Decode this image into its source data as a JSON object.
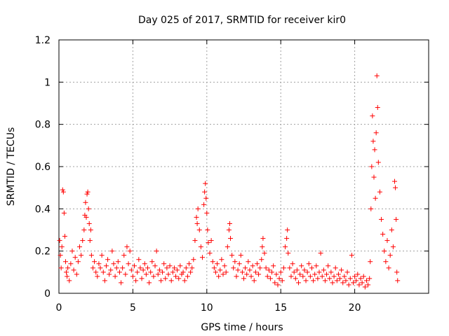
{
  "chart_data": {
    "type": "scatter",
    "title": "Day 025 of 2017, SRMTID for receiver kir0",
    "xlabel": "GPS time / hours",
    "ylabel": "SRMTID / TECUs",
    "xlim": [
      0,
      25
    ],
    "ylim": [
      0,
      1.2
    ],
    "xticks": [
      0,
      5,
      10,
      15,
      20
    ],
    "xtick_labels": [
      "0",
      "5",
      "10",
      "15",
      "20"
    ],
    "yticks": [
      0,
      0.2,
      0.4,
      0.6,
      0.8,
      1.0,
      1.2
    ],
    "ytick_labels": [
      "0",
      "0.2",
      "0.4",
      "0.6",
      "0.8",
      "1",
      "1.2"
    ],
    "grid": true,
    "marker": "+",
    "series": [
      {
        "name": "SRMTID",
        "color": "#ff0000",
        "points": [
          [
            0.05,
            0.25
          ],
          [
            0.1,
            0.18
          ],
          [
            0.15,
            0.12
          ],
          [
            0.2,
            0.22
          ],
          [
            0.25,
            0.49
          ],
          [
            0.3,
            0.48
          ],
          [
            0.35,
            0.38
          ],
          [
            0.4,
            0.27
          ],
          [
            0.45,
            0.15
          ],
          [
            0.5,
            0.1
          ],
          [
            0.55,
            0.08
          ],
          [
            0.6,
            0.12
          ],
          [
            0.7,
            0.06
          ],
          [
            0.8,
            0.14
          ],
          [
            0.9,
            0.2
          ],
          [
            1.0,
            0.11
          ],
          [
            1.1,
            0.17
          ],
          [
            1.2,
            0.09
          ],
          [
            1.3,
            0.15
          ],
          [
            1.4,
            0.22
          ],
          [
            1.5,
            0.18
          ],
          [
            1.6,
            0.25
          ],
          [
            1.7,
            0.3
          ],
          [
            1.75,
            0.37
          ],
          [
            1.8,
            0.43
          ],
          [
            1.85,
            0.36
          ],
          [
            1.9,
            0.47
          ],
          [
            1.95,
            0.48
          ],
          [
            2.0,
            0.4
          ],
          [
            2.05,
            0.33
          ],
          [
            2.1,
            0.25
          ],
          [
            2.15,
            0.3
          ],
          [
            2.2,
            0.18
          ],
          [
            2.3,
            0.12
          ],
          [
            2.4,
            0.15
          ],
          [
            2.5,
            0.1
          ],
          [
            2.6,
            0.08
          ],
          [
            2.7,
            0.14
          ],
          [
            2.8,
            0.12
          ],
          [
            2.9,
            0.18
          ],
          [
            3.0,
            0.1
          ],
          [
            3.1,
            0.06
          ],
          [
            3.2,
            0.13
          ],
          [
            3.3,
            0.16
          ],
          [
            3.4,
            0.09
          ],
          [
            3.5,
            0.11
          ],
          [
            3.6,
            0.2
          ],
          [
            3.7,
            0.14
          ],
          [
            3.8,
            0.08
          ],
          [
            3.9,
            0.12
          ],
          [
            4.0,
            0.15
          ],
          [
            4.1,
            0.1
          ],
          [
            4.2,
            0.05
          ],
          [
            4.3,
            0.12
          ],
          [
            4.4,
            0.18
          ],
          [
            4.5,
            0.09
          ],
          [
            4.6,
            0.22
          ],
          [
            4.7,
            0.14
          ],
          [
            4.8,
            0.2
          ],
          [
            4.9,
            0.11
          ],
          [
            5.0,
            0.08
          ],
          [
            5.1,
            0.13
          ],
          [
            5.2,
            0.06
          ],
          [
            5.3,
            0.1
          ],
          [
            5.4,
            0.16
          ],
          [
            5.5,
            0.12
          ],
          [
            5.6,
            0.07
          ],
          [
            5.7,
            0.11
          ],
          [
            5.8,
            0.14
          ],
          [
            5.9,
            0.09
          ],
          [
            6.0,
            0.12
          ],
          [
            6.1,
            0.05
          ],
          [
            6.2,
            0.1
          ],
          [
            6.3,
            0.15
          ],
          [
            6.4,
            0.08
          ],
          [
            6.5,
            0.13
          ],
          [
            6.6,
            0.2
          ],
          [
            6.7,
            0.09
          ],
          [
            6.8,
            0.11
          ],
          [
            6.9,
            0.06
          ],
          [
            7.0,
            0.1
          ],
          [
            7.1,
            0.14
          ],
          [
            7.2,
            0.07
          ],
          [
            7.3,
            0.12
          ],
          [
            7.4,
            0.09
          ],
          [
            7.5,
            0.13
          ],
          [
            7.6,
            0.06
          ],
          [
            7.7,
            0.1
          ],
          [
            7.8,
            0.12
          ],
          [
            7.9,
            0.08
          ],
          [
            8.0,
            0.11
          ],
          [
            8.1,
            0.07
          ],
          [
            8.2,
            0.13
          ],
          [
            8.3,
            0.09
          ],
          [
            8.4,
            0.1
          ],
          [
            8.5,
            0.06
          ],
          [
            8.6,
            0.12
          ],
          [
            8.7,
            0.08
          ],
          [
            8.8,
            0.14
          ],
          [
            8.9,
            0.1
          ],
          [
            9.0,
            0.12
          ],
          [
            9.1,
            0.16
          ],
          [
            9.2,
            0.25
          ],
          [
            9.3,
            0.36
          ],
          [
            9.35,
            0.33
          ],
          [
            9.4,
            0.4
          ],
          [
            9.5,
            0.3
          ],
          [
            9.6,
            0.22
          ],
          [
            9.7,
            0.17
          ],
          [
            9.8,
            0.42
          ],
          [
            9.85,
            0.48
          ],
          [
            9.9,
            0.52
          ],
          [
            9.95,
            0.45
          ],
          [
            10.0,
            0.38
          ],
          [
            10.05,
            0.3
          ],
          [
            10.1,
            0.24
          ],
          [
            10.2,
            0.19
          ],
          [
            10.3,
            0.25
          ],
          [
            10.4,
            0.15
          ],
          [
            10.5,
            0.12
          ],
          [
            10.6,
            0.1
          ],
          [
            10.7,
            0.14
          ],
          [
            10.8,
            0.08
          ],
          [
            10.9,
            0.11
          ],
          [
            11.0,
            0.16
          ],
          [
            11.1,
            0.09
          ],
          [
            11.2,
            0.13
          ],
          [
            11.3,
            0.1
          ],
          [
            11.4,
            0.22
          ],
          [
            11.5,
            0.3
          ],
          [
            11.55,
            0.33
          ],
          [
            11.6,
            0.26
          ],
          [
            11.7,
            0.18
          ],
          [
            11.8,
            0.12
          ],
          [
            11.9,
            0.15
          ],
          [
            12.0,
            0.08
          ],
          [
            12.1,
            0.11
          ],
          [
            12.2,
            0.14
          ],
          [
            12.3,
            0.18
          ],
          [
            12.4,
            0.1
          ],
          [
            12.5,
            0.07
          ],
          [
            12.6,
            0.12
          ],
          [
            12.7,
            0.09
          ],
          [
            12.8,
            0.15
          ],
          [
            12.9,
            0.11
          ],
          [
            13.0,
            0.08
          ],
          [
            13.1,
            0.13
          ],
          [
            13.2,
            0.06
          ],
          [
            13.3,
            0.1
          ],
          [
            13.4,
            0.14
          ],
          [
            13.5,
            0.09
          ],
          [
            13.6,
            0.12
          ],
          [
            13.7,
            0.16
          ],
          [
            13.75,
            0.22
          ],
          [
            13.8,
            0.26
          ],
          [
            13.9,
            0.19
          ],
          [
            14.0,
            0.12
          ],
          [
            14.1,
            0.08
          ],
          [
            14.2,
            0.11
          ],
          [
            14.3,
            0.07
          ],
          [
            14.4,
            0.1
          ],
          [
            14.5,
            0.13
          ],
          [
            14.6,
            0.05
          ],
          [
            14.7,
            0.09
          ],
          [
            14.8,
            0.04
          ],
          [
            14.9,
            0.07
          ],
          [
            15.0,
            0.1
          ],
          [
            15.1,
            0.06
          ],
          [
            15.2,
            0.12
          ],
          [
            15.3,
            0.22
          ],
          [
            15.4,
            0.26
          ],
          [
            15.45,
            0.3
          ],
          [
            15.5,
            0.19
          ],
          [
            15.6,
            0.12
          ],
          [
            15.7,
            0.08
          ],
          [
            15.8,
            0.14
          ],
          [
            15.9,
            0.1
          ],
          [
            16.0,
            0.07
          ],
          [
            16.1,
            0.11
          ],
          [
            16.2,
            0.05
          ],
          [
            16.3,
            0.09
          ],
          [
            16.4,
            0.13
          ],
          [
            16.5,
            0.08
          ],
          [
            16.6,
            0.11
          ],
          [
            16.7,
            0.06
          ],
          [
            16.8,
            0.1
          ],
          [
            16.9,
            0.14
          ],
          [
            17.0,
            0.08
          ],
          [
            17.1,
            0.12
          ],
          [
            17.2,
            0.06
          ],
          [
            17.3,
            0.09
          ],
          [
            17.4,
            0.13
          ],
          [
            17.5,
            0.07
          ],
          [
            17.6,
            0.1
          ],
          [
            17.7,
            0.19
          ],
          [
            17.8,
            0.08
          ],
          [
            17.9,
            0.11
          ],
          [
            18.0,
            0.06
          ],
          [
            18.1,
            0.09
          ],
          [
            18.2,
            0.13
          ],
          [
            18.3,
            0.07
          ],
          [
            18.4,
            0.1
          ],
          [
            18.5,
            0.05
          ],
          [
            18.6,
            0.08
          ],
          [
            18.7,
            0.12
          ],
          [
            18.8,
            0.06
          ],
          [
            18.9,
            0.09
          ],
          [
            19.0,
            0.07
          ],
          [
            19.1,
            0.11
          ],
          [
            19.2,
            0.05
          ],
          [
            19.3,
            0.08
          ],
          [
            19.4,
            0.06
          ],
          [
            19.5,
            0.1
          ],
          [
            19.6,
            0.04
          ],
          [
            19.7,
            0.07
          ],
          [
            19.8,
            0.18
          ],
          [
            19.9,
            0.05
          ],
          [
            20.0,
            0.08
          ],
          [
            20.1,
            0.06
          ],
          [
            20.2,
            0.09
          ],
          [
            20.3,
            0.04
          ],
          [
            20.4,
            0.07
          ],
          [
            20.5,
            0.05
          ],
          [
            20.6,
            0.08
          ],
          [
            20.7,
            0.03
          ],
          [
            20.8,
            0.06
          ],
          [
            20.9,
            0.04
          ],
          [
            21.0,
            0.07
          ],
          [
            21.05,
            0.15
          ],
          [
            21.1,
            0.4
          ],
          [
            21.15,
            0.6
          ],
          [
            21.2,
            0.84
          ],
          [
            21.25,
            0.72
          ],
          [
            21.3,
            0.55
          ],
          [
            21.35,
            0.68
          ],
          [
            21.4,
            0.45
          ],
          [
            21.45,
            0.76
          ],
          [
            21.5,
            1.03
          ],
          [
            21.55,
            0.88
          ],
          [
            21.6,
            0.62
          ],
          [
            21.7,
            0.48
          ],
          [
            21.8,
            0.35
          ],
          [
            21.9,
            0.28
          ],
          [
            22.0,
            0.2
          ],
          [
            22.1,
            0.15
          ],
          [
            22.2,
            0.25
          ],
          [
            22.3,
            0.12
          ],
          [
            22.4,
            0.18
          ],
          [
            22.5,
            0.3
          ],
          [
            22.6,
            0.22
          ],
          [
            22.7,
            0.53
          ],
          [
            22.75,
            0.5
          ],
          [
            22.8,
            0.35
          ],
          [
            22.85,
            0.1
          ],
          [
            22.9,
            0.06
          ]
        ]
      }
    ]
  }
}
